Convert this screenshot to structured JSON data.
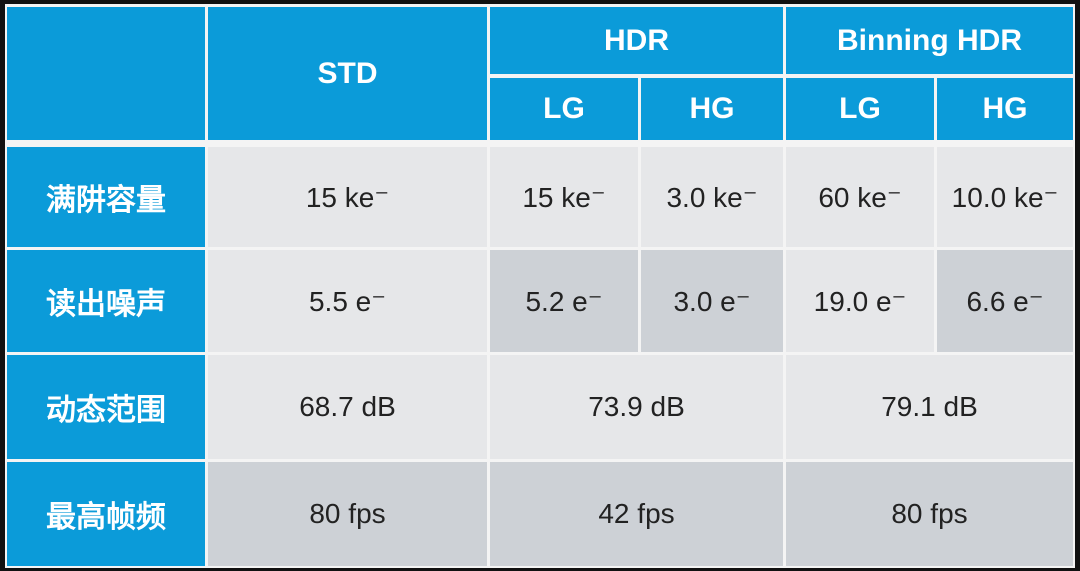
{
  "table": {
    "header": {
      "row1": [
        "STD",
        "HDR",
        "Binning HDR"
      ],
      "row2": [
        "LG",
        "HG",
        "LG",
        "HG"
      ]
    },
    "rows": [
      {
        "label": "满阱容量",
        "cells": [
          "15 ke⁻",
          "15 ke⁻",
          "3.0 ke⁻",
          "60 ke⁻",
          "10.0 ke⁻"
        ]
      },
      {
        "label": "读出噪声",
        "cells": [
          "5.5 e⁻",
          "5.2 e⁻",
          "3.0 e⁻",
          "19.0 e⁻",
          "6.6 e⁻"
        ]
      },
      {
        "label": "动态范围",
        "cells": [
          "68.7 dB",
          "73.9 dB",
          "79.1 dB"
        ]
      },
      {
        "label": "最高帧频",
        "cells": [
          "80 fps",
          "42 fps",
          "80 fps"
        ]
      }
    ]
  }
}
